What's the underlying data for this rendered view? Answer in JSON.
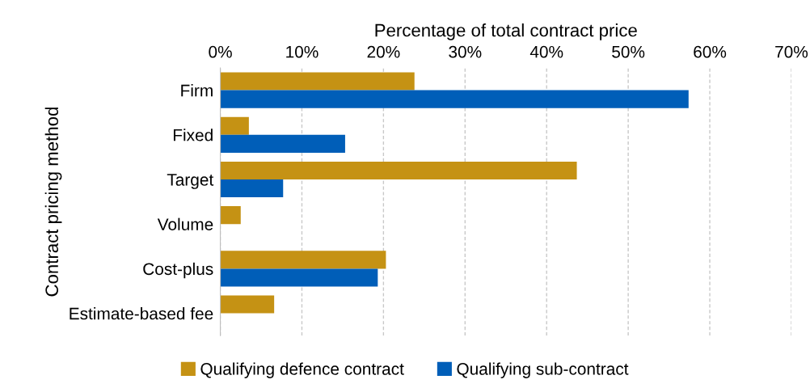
{
  "chart_data": {
    "type": "bar",
    "orientation": "horizontal",
    "xlabel": "Percentage of total contract price",
    "ylabel": "Contract pricing method",
    "categories": [
      "Firm",
      "Fixed",
      "Target",
      "Volume",
      "Cost-plus",
      "Estimate-based fee"
    ],
    "series": [
      {
        "name": "Qualifying defence contract",
        "color": "#c59214",
        "values": [
          23.8,
          3.5,
          43.7,
          2.5,
          20.3,
          6.6
        ]
      },
      {
        "name": "Qualifying sub-contract",
        "color": "#005eb8",
        "values": [
          57.4,
          15.3,
          7.7,
          null,
          19.3,
          null
        ]
      }
    ],
    "xlim": [
      0,
      70
    ],
    "xticks": [
      {
        "value": 0,
        "label": "0%"
      },
      {
        "value": 10,
        "label": "10%"
      },
      {
        "value": 20,
        "label": "20%"
      },
      {
        "value": 30,
        "label": "30%"
      },
      {
        "value": 40,
        "label": "40%"
      },
      {
        "value": 50,
        "label": "50%"
      },
      {
        "value": 60,
        "label": "60%"
      },
      {
        "value": 70,
        "label": "70%"
      }
    ],
    "grid": "x",
    "legend": "bottom"
  }
}
